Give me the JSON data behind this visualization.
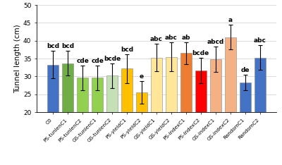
{
  "categories": [
    "C0",
    "PS-tunlenC1",
    "PS-tunlenC2",
    "GS-tunlenC1",
    "GS-tunlenC2",
    "PS-yieldC1",
    "PS-yieldC2",
    "GS-yieldC1",
    "GS-yieldC2",
    "PS-indexC1",
    "PS-indexC2",
    "GS-indexC1",
    "GS-indexC2",
    "RandomC1",
    "RandomC2"
  ],
  "values": [
    33.3,
    33.7,
    29.6,
    29.6,
    30.2,
    32.2,
    25.5,
    35.3,
    35.5,
    36.5,
    31.7,
    34.8,
    41.0,
    28.3,
    35.3
  ],
  "errors": [
    3.8,
    3.5,
    3.5,
    3.5,
    3.5,
    4.0,
    3.2,
    3.8,
    4.0,
    3.0,
    3.5,
    3.5,
    3.5,
    2.2,
    3.5
  ],
  "letters": [
    "bcd",
    "bcd",
    "cde",
    "cde",
    "bcde",
    "bcd",
    "e",
    "abc",
    "abc",
    "ab",
    "bcde",
    "abcd",
    "a",
    "de",
    "abc"
  ],
  "bar_colors": [
    "#4472C4",
    "#70AD47",
    "#92D050",
    "#92D050",
    "#C5E0B4",
    "#FFC000",
    "#FFC000",
    "#FFE699",
    "#FFE699",
    "#ED7D31",
    "#FF0000",
    "#FFB870",
    "#FFB870",
    "#4472C4",
    "#4472C4"
  ],
  "ylabel": "Tunnel length (cm)",
  "ylim": [
    20,
    50
  ],
  "yticks": [
    20,
    25,
    30,
    35,
    40,
    45,
    50
  ],
  "letter_fontsize": 6.5,
  "ylabel_fontsize": 7.5,
  "tick_fontsize": 6.5,
  "xtick_fontsize": 5.2
}
